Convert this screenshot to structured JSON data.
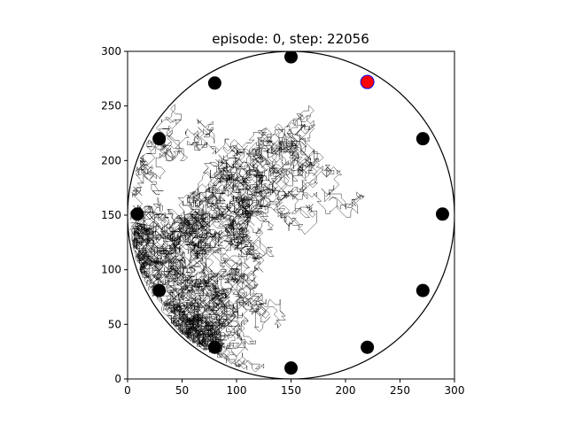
{
  "chart_data": {
    "type": "scatter",
    "title": "episode: 0, step: 22056",
    "xlabel": "",
    "ylabel": "",
    "xlim": [
      0,
      300
    ],
    "ylim": [
      0,
      300
    ],
    "x_ticks": [
      0,
      50,
      100,
      150,
      200,
      250,
      300
    ],
    "y_ticks": [
      0,
      50,
      100,
      150,
      200,
      250,
      300
    ],
    "grid": false,
    "boundary_circle": {
      "cx": 150,
      "cy": 150,
      "r": 150
    },
    "black_markers": [
      {
        "x": 150,
        "y": 295
      },
      {
        "x": 80,
        "y": 271
      },
      {
        "x": 29,
        "y": 220
      },
      {
        "x": 271,
        "y": 220
      },
      {
        "x": 9,
        "y": 151
      },
      {
        "x": 289,
        "y": 151
      },
      {
        "x": 29,
        "y": 81
      },
      {
        "x": 271,
        "y": 81
      },
      {
        "x": 80,
        "y": 29
      },
      {
        "x": 220,
        "y": 29
      },
      {
        "x": 150,
        "y": 10
      }
    ],
    "agent_marker": {
      "x": 220,
      "y": 272
    },
    "colors": {
      "trajectory": "#000000",
      "markers": "#000000",
      "agent": "#ff0000",
      "agent_outline": "#0000ff",
      "background": "#ffffff"
    }
  }
}
